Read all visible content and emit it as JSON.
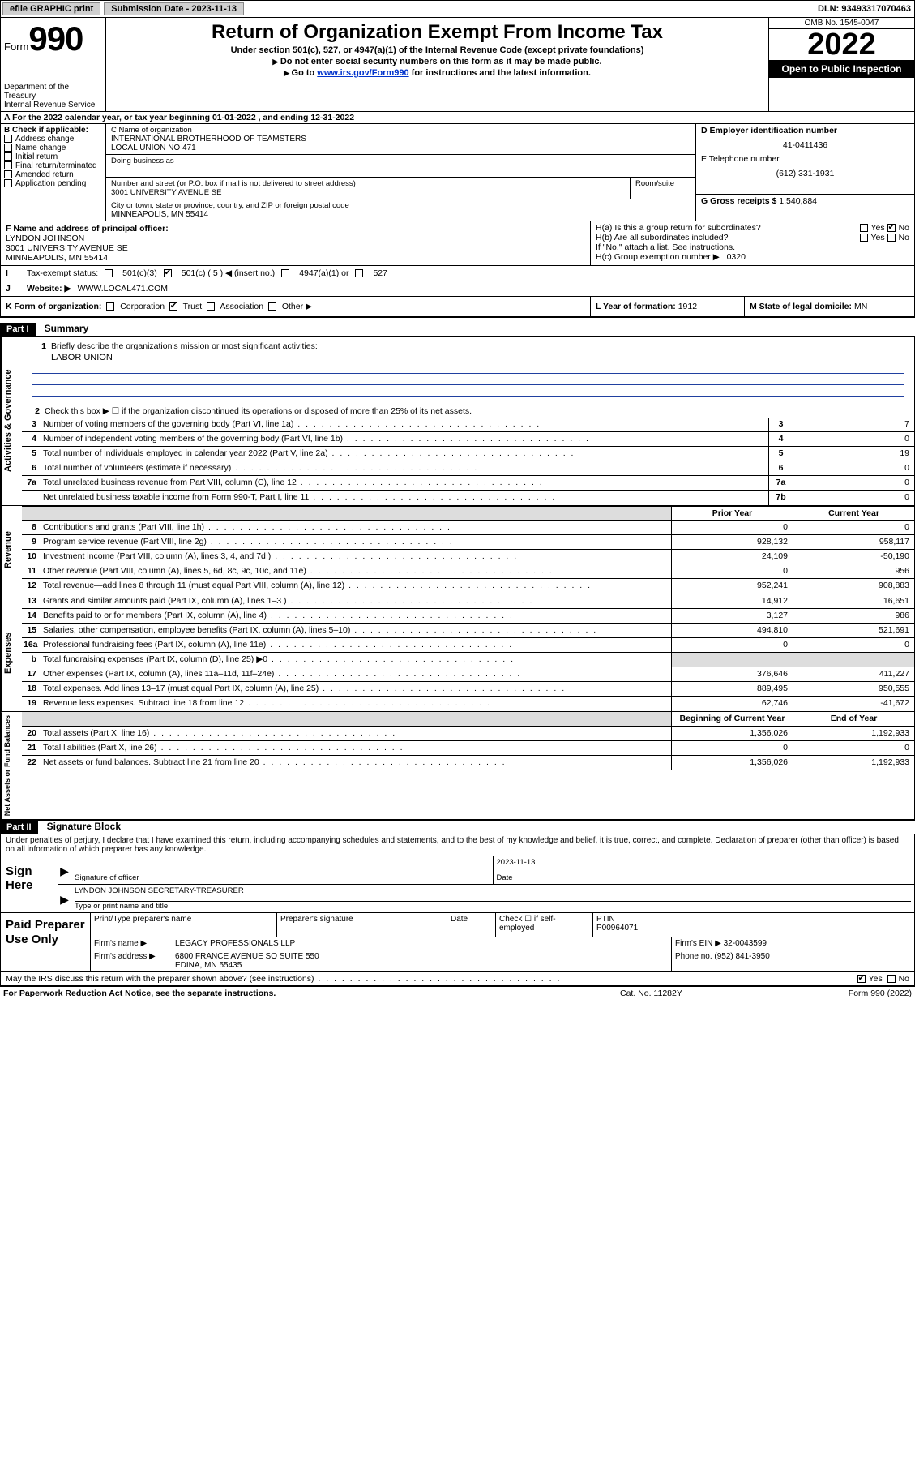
{
  "topbar": {
    "efile": "efile GRAPHIC print",
    "subdate_lbl": "Submission Date - ",
    "subdate": "2023-11-13",
    "dln_lbl": "DLN: ",
    "dln": "93493317070463"
  },
  "header": {
    "form_word": "Form",
    "form_num": "990",
    "dept": "Department of the Treasury",
    "irs": "Internal Revenue Service",
    "title": "Return of Organization Exempt From Income Tax",
    "sub1": "Under section 501(c), 527, or 4947(a)(1) of the Internal Revenue Code (except private foundations)",
    "sub2": "Do not enter social security numbers on this form as it may be made public.",
    "sub3_pre": "Go to ",
    "sub3_link": "www.irs.gov/Form990",
    "sub3_post": " for instructions and the latest information.",
    "omb": "OMB No. 1545-0047",
    "year": "2022",
    "openpub": "Open to Public Inspection"
  },
  "rowA": "A For the 2022 calendar year, or tax year beginning 01-01-2022   , and ending 12-31-2022",
  "boxB": {
    "hdr": "B Check if applicable:",
    "items": [
      "Address change",
      "Name change",
      "Initial return",
      "Final return/terminated",
      "Amended return",
      "Application pending"
    ]
  },
  "boxC": {
    "name_lbl": "C Name of organization",
    "name1": "INTERNATIONAL BROTHERHOOD OF TEAMSTERS",
    "name2": "LOCAL UNION NO 471",
    "dba_lbl": "Doing business as",
    "addr_lbl": "Number and street (or P.O. box if mail is not delivered to street address)",
    "room_lbl": "Room/suite",
    "addr": "3001 UNIVERSITY AVENUE SE",
    "city_lbl": "City or town, state or province, country, and ZIP or foreign postal code",
    "city": "MINNEAPOLIS, MN  55414"
  },
  "boxD": {
    "ein_lbl": "D Employer identification number",
    "ein": "41-0411436",
    "tel_lbl": "E Telephone number",
    "tel": "(612) 331-1931",
    "gross_lbl": "G Gross receipts $ ",
    "gross": "1,540,884"
  },
  "boxF": {
    "lbl": "F Name and address of principal officer:",
    "name": "LYNDON JOHNSON",
    "addr1": "3001 UNIVERSITY AVENUE SE",
    "addr2": "MINNEAPOLIS, MN  55414"
  },
  "boxH": {
    "a": "H(a)  Is this a group return for subordinates?",
    "b": "H(b)  Are all subordinates included?",
    "bnote": "If \"No,\" attach a list. See instructions.",
    "c_lbl": "H(c)  Group exemption number ▶",
    "c_val": "0320",
    "yes": "Yes",
    "no": "No"
  },
  "rowI": {
    "lbl": "Tax-exempt status:",
    "opt1": "501(c)(3)",
    "opt2": "501(c) ( 5 ) ◀ (insert no.)",
    "opt3": "4947(a)(1) or",
    "opt4": "527"
  },
  "rowJ": {
    "lbl": "Website: ▶",
    "val": "WWW.LOCAL471.COM"
  },
  "rowK": {
    "lbl": "K Form of organization:",
    "opts": [
      "Corporation",
      "Trust",
      "Association",
      "Other ▶"
    ],
    "checked": 1
  },
  "rowL": {
    "lbl": "L Year of formation: ",
    "val": "1912"
  },
  "rowM": {
    "lbl": "M State of legal domicile: ",
    "val": "MN"
  },
  "parts": {
    "p1": "Part I",
    "p1t": "Summary",
    "p2": "Part II",
    "p2t": "Signature Block"
  },
  "summary": {
    "sections": [
      {
        "label": "Activities & Governance",
        "brief_lbl": "Briefly describe the organization's mission or most significant activities:",
        "brief_n": "1",
        "brief_val": "LABOR UNION",
        "line2": "Check this box ▶ ☐  if the organization discontinued its operations or disposed of more than 25% of its net assets.",
        "rows": [
          {
            "n": "3",
            "txt": "Number of voting members of the governing body (Part VI, line 1a)",
            "nc": "3",
            "v": "7"
          },
          {
            "n": "4",
            "txt": "Number of independent voting members of the governing body (Part VI, line 1b)",
            "nc": "4",
            "v": "0"
          },
          {
            "n": "5",
            "txt": "Total number of individuals employed in calendar year 2022 (Part V, line 2a)",
            "nc": "5",
            "v": "19"
          },
          {
            "n": "6",
            "txt": "Total number of volunteers (estimate if necessary)",
            "nc": "6",
            "v": "0"
          },
          {
            "n": "7a",
            "txt": "Total unrelated business revenue from Part VIII, column (C), line 12",
            "nc": "7a",
            "v": "0"
          },
          {
            "n": "",
            "txt": "Net unrelated business taxable income from Form 990-T, Part I, line 11",
            "nc": "7b",
            "v": "0"
          }
        ]
      }
    ],
    "colhdr_prior": "Prior Year",
    "colhdr_curr": "Current Year",
    "colhdr_boy": "Beginning of Current Year",
    "colhdr_eoy": "End of Year",
    "revenue_label": "Revenue",
    "revenue": [
      {
        "n": "8",
        "txt": "Contributions and grants (Part VIII, line 1h)",
        "p": "0",
        "c": "0"
      },
      {
        "n": "9",
        "txt": "Program service revenue (Part VIII, line 2g)",
        "p": "928,132",
        "c": "958,117"
      },
      {
        "n": "10",
        "txt": "Investment income (Part VIII, column (A), lines 3, 4, and 7d )",
        "p": "24,109",
        "c": "-50,190"
      },
      {
        "n": "11",
        "txt": "Other revenue (Part VIII, column (A), lines 5, 6d, 8c, 9c, 10c, and 11e)",
        "p": "0",
        "c": "956"
      },
      {
        "n": "12",
        "txt": "Total revenue—add lines 8 through 11 (must equal Part VIII, column (A), line 12)",
        "p": "952,241",
        "c": "908,883"
      }
    ],
    "expenses_label": "Expenses",
    "expenses": [
      {
        "n": "13",
        "txt": "Grants and similar amounts paid (Part IX, column (A), lines 1–3 )",
        "p": "14,912",
        "c": "16,651"
      },
      {
        "n": "14",
        "txt": "Benefits paid to or for members (Part IX, column (A), line 4)",
        "p": "3,127",
        "c": "986"
      },
      {
        "n": "15",
        "txt": "Salaries, other compensation, employee benefits (Part IX, column (A), lines 5–10)",
        "p": "494,810",
        "c": "521,691"
      },
      {
        "n": "16a",
        "txt": "Professional fundraising fees (Part IX, column (A), line 11e)",
        "p": "0",
        "c": "0"
      },
      {
        "n": "b",
        "txt": "Total fundraising expenses (Part IX, column (D), line 25) ▶0",
        "p": "",
        "c": "",
        "shade": true
      },
      {
        "n": "17",
        "txt": "Other expenses (Part IX, column (A), lines 11a–11d, 11f–24e)",
        "p": "376,646",
        "c": "411,227"
      },
      {
        "n": "18",
        "txt": "Total expenses. Add lines 13–17 (must equal Part IX, column (A), line 25)",
        "p": "889,495",
        "c": "950,555"
      },
      {
        "n": "19",
        "txt": "Revenue less expenses. Subtract line 18 from line 12",
        "p": "62,746",
        "c": "-41,672"
      }
    ],
    "netassets_label": "Net Assets or Fund Balances",
    "netassets": [
      {
        "n": "20",
        "txt": "Total assets (Part X, line 16)",
        "p": "1,356,026",
        "c": "1,192,933"
      },
      {
        "n": "21",
        "txt": "Total liabilities (Part X, line 26)",
        "p": "0",
        "c": "0"
      },
      {
        "n": "22",
        "txt": "Net assets or fund balances. Subtract line 21 from line 20",
        "p": "1,356,026",
        "c": "1,192,933"
      }
    ]
  },
  "sig": {
    "declar": "Under penalties of perjury, I declare that I have examined this return, including accompanying schedules and statements, and to the best of my knowledge and belief, it is true, correct, and complete. Declaration of preparer (other than officer) is based on all information of which preparer has any knowledge.",
    "sign_here": "Sign Here",
    "sig_officer": "Signature of officer",
    "date_lbl": "Date",
    "date_val": "2023-11-13",
    "name_title": "LYNDON JOHNSON  SECRETARY-TREASURER",
    "name_title_lbl": "Type or print name and title",
    "paid": "Paid Preparer Use Only",
    "p_name_lbl": "Print/Type preparer's name",
    "p_sig_lbl": "Preparer's signature",
    "p_date_lbl": "Date",
    "p_check": "Check ☐ if self-employed",
    "ptin_lbl": "PTIN",
    "ptin": "P00964071",
    "firm_name_lbl": "Firm's name   ▶",
    "firm_name": "LEGACY PROFESSIONALS LLP",
    "firm_ein_lbl": "Firm's EIN ▶",
    "firm_ein": "32-0043599",
    "firm_addr_lbl": "Firm's address ▶",
    "firm_addr1": "6800 FRANCE AVENUE SO SUITE 550",
    "firm_addr2": "EDINA, MN  55435",
    "phone_lbl": "Phone no. ",
    "phone": "(952) 841-3950",
    "mayirs": "May the IRS discuss this return with the preparer shown above? (see instructions)",
    "yes": "Yes",
    "no": "No"
  },
  "footer": {
    "l": "For Paperwork Reduction Act Notice, see the separate instructions.",
    "m": "Cat. No. 11282Y",
    "r": "Form 990 (2022)"
  }
}
